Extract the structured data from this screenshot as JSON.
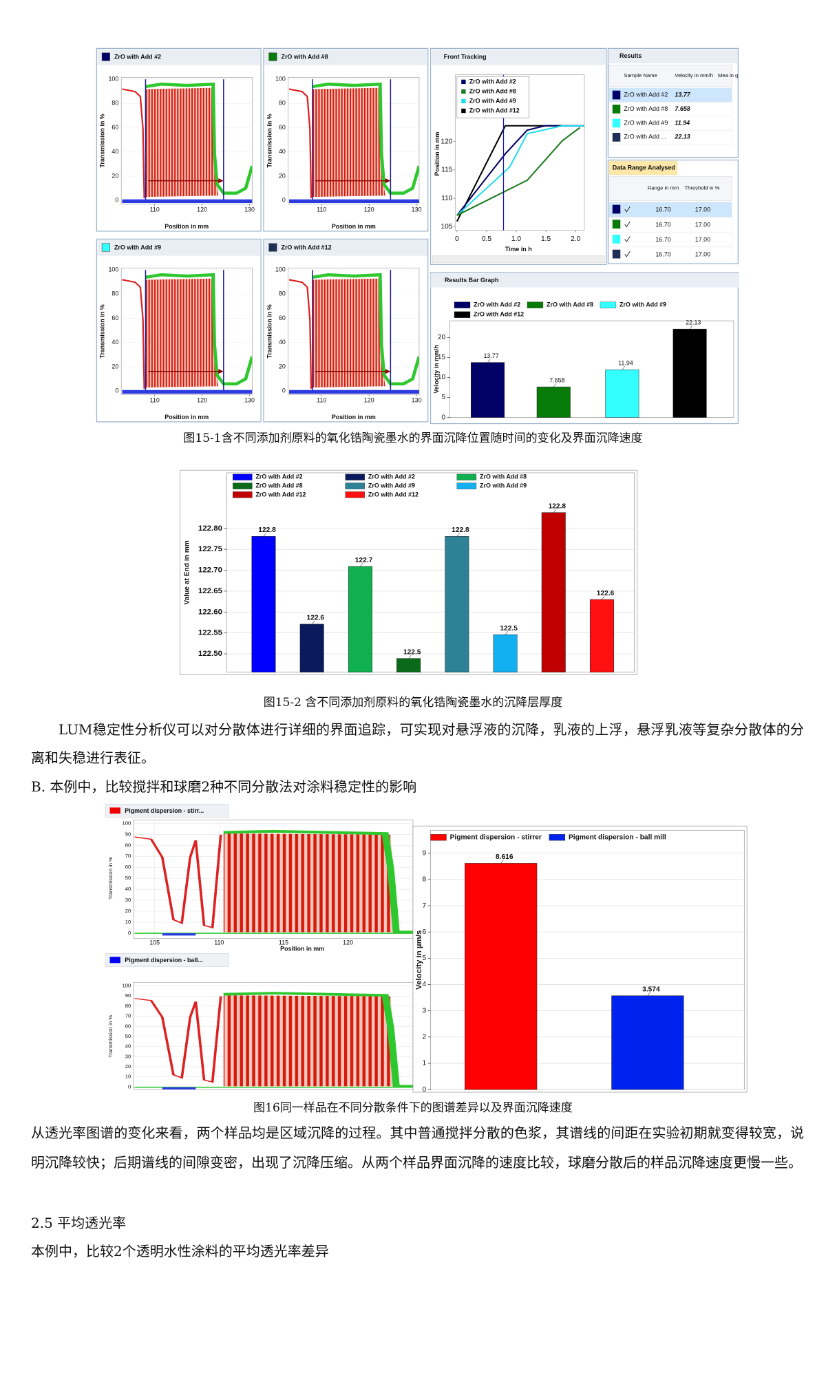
{
  "fig15_1": {
    "panels": [
      {
        "title": "ZrO with Add #2",
        "color": "#000066"
      },
      {
        "title": "ZrO with Add #8",
        "color": "#087a08"
      },
      {
        "title": "ZrO with Add #9",
        "color": "#33ffff"
      },
      {
        "title": "ZrO with Add #12",
        "color": "#1f2f55"
      }
    ],
    "panel_axes": {
      "x_label": "Position in mm",
      "y_label": "Transmission in %",
      "xticks": [
        110,
        120,
        130
      ],
      "yticks": [
        0,
        20,
        40,
        60,
        80,
        100
      ]
    },
    "front_tracking": {
      "title": "Front Tracking",
      "x_label": "Time in h",
      "y_label": "Position in mm",
      "series": [
        {
          "name": "ZrO with Add #2",
          "color": "#000066"
        },
        {
          "name": "ZrO with Add #8",
          "color": "#1b7a1b"
        },
        {
          "name": "ZrO with Add #9",
          "color": "#22ddee"
        },
        {
          "name": "ZrO with Add #12",
          "color": "#000000"
        }
      ],
      "xticks": [
        0,
        0.5,
        {
          "value": 1,
          "label": "1.0"
        },
        1.5,
        {
          "value": 2,
          "label": "2.0"
        }
      ],
      "yticks": [
        105,
        110,
        115,
        120
      ]
    },
    "results": {
      "title": "Results",
      "columns": [
        "Sample Name",
        "Velocity in mm/h",
        "Mea in g"
      ],
      "rows": [
        [
          "ZrO with Add #2",
          "13.77"
        ],
        [
          "ZrO with Add #8",
          "7.658"
        ],
        [
          "ZrO with Add #9",
          "11.94"
        ],
        [
          "ZrO with Add ...",
          "22.13"
        ]
      ]
    },
    "data_range": {
      "title": "Data Range Analysed",
      "columns": [
        "Range in mm",
        "Threshold in %"
      ],
      "rows": [
        [
          "16.70",
          "17.00"
        ],
        [
          "16.70",
          "17.00"
        ],
        [
          "16.70",
          "17.00"
        ],
        [
          "16.70",
          "17.00"
        ]
      ]
    },
    "bar_graph": {
      "chart_data": {
        "type": "bar",
        "title": "Results Bar Graph",
        "y_label": "Velocity in mm/h",
        "ylim": [
          0,
          24.2
        ],
        "yticks": [
          0,
          5,
          10,
          15,
          20
        ],
        "grid": false,
        "series": [
          {
            "name": "ZrO with Add #2",
            "color": "#000066",
            "values": [
              13.77
            ]
          },
          {
            "name": "ZrO with Add #8",
            "color": "#087a08",
            "values": [
              7.658
            ]
          },
          {
            "name": "ZrO with Add #9",
            "color": "#33ffff",
            "values": [
              11.94
            ]
          },
          {
            "name": "ZrO with Add #12",
            "color": "#000000",
            "values": [
              22.13
            ]
          }
        ]
      }
    },
    "caption": "图15-1含不同添加剂原料的氧化锆陶瓷墨水的界面沉降位置随时间的变化及界面沉降速度"
  },
  "fig15_2": {
    "chart_data": {
      "type": "bar",
      "y_label": "Value at End in mm",
      "ylim": [
        122.456,
        122.933
      ],
      "grid": true,
      "yticks": [
        {
          "value": 122.5,
          "label": "122.50"
        },
        {
          "value": 122.55,
          "label": "122.55"
        },
        {
          "value": 122.6,
          "label": "122.60"
        },
        {
          "value": 122.65,
          "label": "122.65"
        },
        {
          "value": 122.7,
          "label": "122.70"
        },
        {
          "value": 122.75,
          "label": "122.75"
        },
        {
          "value": 122.8,
          "label": "122.80"
        }
      ],
      "series": [
        {
          "name": "ZrO with Add #2",
          "color": "#0000ff",
          "values": [
            122.781
          ],
          "value_labels": [
            "122.8"
          ]
        },
        {
          "name": "ZrO with Add #2",
          "color": "#0a1a5c",
          "values": [
            122.571
          ],
          "value_labels": [
            "122.6"
          ]
        },
        {
          "name": "ZrO with Add #8",
          "color": "#10b050",
          "values": [
            122.709
          ],
          "value_labels": [
            "122.7"
          ]
        },
        {
          "name": "ZrO with Add #8",
          "color": "#0a6a1a",
          "values": [
            122.489
          ],
          "value_labels": [
            "122.5"
          ]
        },
        {
          "name": "ZrO with Add #9",
          "color": "#2e8296",
          "values": [
            122.781
          ],
          "value_labels": [
            "122.8"
          ]
        },
        {
          "name": "ZrO with Add #9",
          "color": "#12b0f0",
          "values": [
            122.546
          ],
          "value_labels": [
            "122.5"
          ]
        },
        {
          "name": "ZrO with Add #12",
          "color": "#c00000",
          "values": [
            122.838
          ],
          "value_labels": [
            "122.8"
          ]
        },
        {
          "name": "ZrO with Add #12",
          "color": "#ff1010",
          "values": [
            122.63
          ],
          "value_labels": [
            "122.6"
          ]
        }
      ]
    },
    "caption": "图15-2 含不同添加剂原料的氧化锆陶瓷墨水的沉降层厚度"
  },
  "paragraph_1": "LUM稳定性分析仪可以对分散体进行详细的界面追踪，可实现对悬浮液的沉降，乳液的上浮，悬浮乳液等复杂分散体的分离和失稳进行表征。",
  "section_b": "B. 本例中，比较搅拌和球磨2种不同分散法对涂料稳定性的影响",
  "fig16": {
    "panels": [
      {
        "title": "Pigment dispersion - stirr...",
        "color": "#ee0000"
      },
      {
        "title": "Pigment dispersion - ball...",
        "color": "#0000ee"
      }
    ],
    "panel_axes": {
      "x_label": "Position in mm",
      "y_label": "Transmission in %",
      "xticks": [
        105,
        110,
        115,
        120
      ],
      "yticks": [
        0,
        10,
        20,
        30,
        40,
        50,
        60,
        70,
        80,
        90,
        100
      ]
    },
    "chart_data": {
      "type": "bar",
      "y_label": "Velocity in µm/s",
      "ylim": [
        0,
        9.87
      ],
      "yticks": [
        0,
        1,
        2,
        3,
        4,
        5,
        6,
        7,
        8,
        9
      ],
      "grid": true,
      "series": [
        {
          "name": "Pigment dispersion - stirrer",
          "color": "#ff0000",
          "values": [
            8.616
          ]
        },
        {
          "name": "Pigment dispersion - ball mill",
          "color": "#0022ee",
          "values": [
            3.574
          ]
        }
      ]
    },
    "caption": "图16同一样品在不同分散条件下的图谱差异以及界面沉降速度"
  },
  "paragraph_2": "从透光率图谱的变化来看，两个样品均是区域沉降的过程。其中普通搅拌分散的色浆，其谱线的间距在实验初期就变得较宽，说明沉降较快；后期谱线的间隙变密，出现了沉降压缩。从两个样品界面沉降的速度比较，球磨分散后的样品沉降速度更慢一些。",
  "section_2_5": "2.5 平均透光率",
  "paragraph_3": "本例中，比较2个透明水性涂料的平均透光率差异"
}
